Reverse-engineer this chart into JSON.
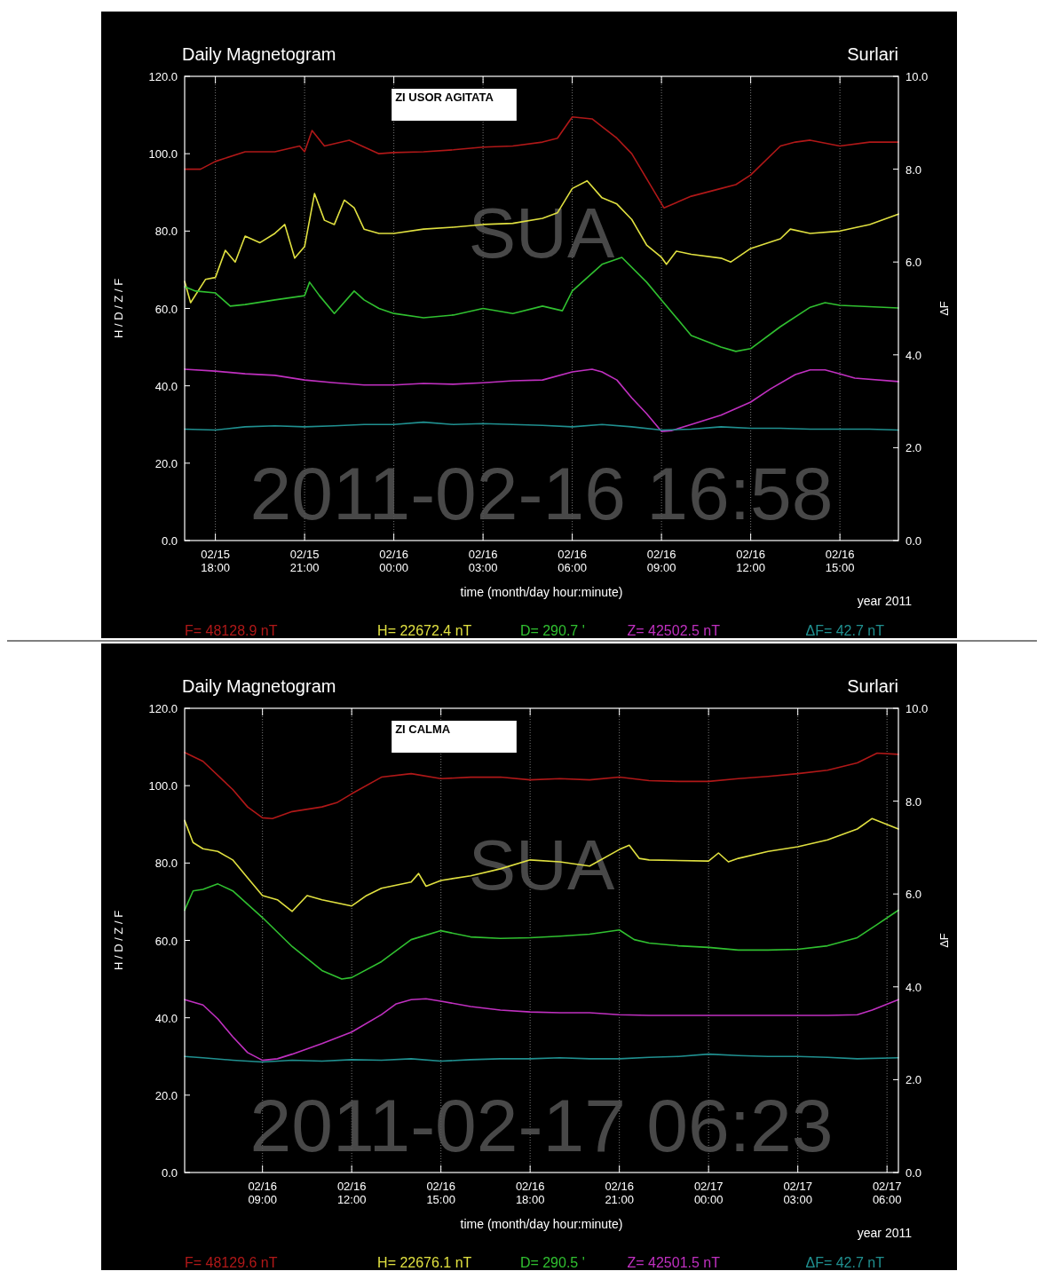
{
  "chart_data": [
    {
      "type": "line",
      "title": "Daily Magnetogram",
      "subtitle": "Surlari",
      "xlabel": "time (month/day hour:minute)",
      "ylabel": "H / D / Z / F",
      "y2label": "ΔF",
      "annotations": [
        "ZI USOR AGITATA",
        "SUA",
        "2011-02-16 16:58",
        "year 2011"
      ],
      "xlim": [
        "2011-02-15T16:58",
        "2011-02-16T16:58"
      ],
      "xticks": [
        {
          "value": "2011-02-15T18:00",
          "label": "02/15 18:00"
        },
        {
          "value": "2011-02-15T21:00",
          "label": "02/15 21:00"
        },
        {
          "value": "2011-02-16T00:00",
          "label": "02/16 00:00"
        },
        {
          "value": "2011-02-16T03:00",
          "label": "02/16 03:00"
        },
        {
          "value": "2011-02-16T06:00",
          "label": "02/16 06:00"
        },
        {
          "value": "2011-02-16T09:00",
          "label": "02/16 09:00"
        },
        {
          "value": "2011-02-16T12:00",
          "label": "02/16 12:00"
        },
        {
          "value": "2011-02-16T15:00",
          "label": "02/16 15:00"
        }
      ],
      "ylim": [
        0,
        120
      ],
      "yticks": [
        {
          "value": 0,
          "label": "0.0"
        },
        {
          "value": 20,
          "label": "20.0"
        },
        {
          "value": 40,
          "label": "40.0"
        },
        {
          "value": 60,
          "label": "60.0"
        },
        {
          "value": 80,
          "label": "80.0"
        },
        {
          "value": 100,
          "label": "100.0"
        },
        {
          "value": 120,
          "label": "120.0"
        }
      ],
      "y2lim": [
        0,
        10
      ],
      "y2ticks": [
        {
          "value": 0,
          "label": "0.0"
        },
        {
          "value": 2,
          "label": "2.0"
        },
        {
          "value": 4,
          "label": "4.0"
        },
        {
          "value": 6,
          "label": "6.0"
        },
        {
          "value": 8,
          "label": "8.0"
        },
        {
          "value": 10,
          "label": "10.0"
        }
      ],
      "grid": "x",
      "legend": "bottom",
      "marker": "none",
      "line_style": "solid",
      "series": [
        {
          "name": "F= 48128.9 nT",
          "color": "#b01818",
          "x": [
            "2011-02-15T16:58",
            "2011-02-15T17:30",
            "2011-02-15T18:00",
            "2011-02-15T19:00",
            "2011-02-15T20:00",
            "2011-02-15T20:50",
            "2011-02-15T21:00",
            "2011-02-15T21:15",
            "2011-02-15T21:40",
            "2011-02-15T22:30",
            "2011-02-15T23:30",
            "2011-02-16T00:00",
            "2011-02-16T01:00",
            "2011-02-16T02:00",
            "2011-02-16T03:00",
            "2011-02-16T04:00",
            "2011-02-16T05:00",
            "2011-02-16T05:30",
            "2011-02-16T06:00",
            "2011-02-16T06:40",
            "2011-02-16T07:00",
            "2011-02-16T07:30",
            "2011-02-16T08:00",
            "2011-02-16T09:05",
            "2011-02-16T10:00",
            "2011-02-16T11:00",
            "2011-02-16T11:30",
            "2011-02-16T12:00",
            "2011-02-16T13:00",
            "2011-02-16T13:30",
            "2011-02-16T14:00",
            "2011-02-16T15:00",
            "2011-02-16T16:00",
            "2011-02-16T16:58"
          ],
          "values": [
            96,
            96,
            98,
            100.5,
            100.5,
            102,
            100.5,
            106,
            102,
            103.5,
            100,
            100.3,
            100.5,
            101,
            101.7,
            102,
            103,
            104,
            109.5,
            109,
            107,
            104,
            100,
            86,
            89,
            91,
            92,
            94.5,
            102,
            103,
            103.5,
            102,
            103,
            103
          ]
        },
        {
          "name": "H= 22672.4 nT",
          "color": "#e0e040",
          "x": [
            "2011-02-15T16:58",
            "2011-02-15T17:10",
            "2011-02-15T17:40",
            "2011-02-15T18:00",
            "2011-02-15T18:20",
            "2011-02-15T18:40",
            "2011-02-15T19:00",
            "2011-02-15T19:30",
            "2011-02-15T20:00",
            "2011-02-15T20:20",
            "2011-02-15T20:40",
            "2011-02-15T21:00",
            "2011-02-15T21:20",
            "2011-02-15T21:40",
            "2011-02-15T22:00",
            "2011-02-15T22:20",
            "2011-02-15T22:40",
            "2011-02-15T23:00",
            "2011-02-15T23:30",
            "2011-02-16T00:00",
            "2011-02-16T01:00",
            "2011-02-16T02:00",
            "2011-02-16T03:00",
            "2011-02-16T04:00",
            "2011-02-16T05:00",
            "2011-02-16T05:30",
            "2011-02-16T06:00",
            "2011-02-16T06:30",
            "2011-02-16T07:00",
            "2011-02-16T07:30",
            "2011-02-16T08:00",
            "2011-02-16T08:30",
            "2011-02-16T09:00",
            "2011-02-16T09:10",
            "2011-02-16T09:30",
            "2011-02-16T10:00",
            "2011-02-16T11:00",
            "2011-02-16T11:20",
            "2011-02-16T12:00",
            "2011-02-16T13:00",
            "2011-02-16T13:20",
            "2011-02-16T14:00",
            "2011-02-16T15:00",
            "2011-02-16T16:00",
            "2011-02-16T16:58"
          ],
          "values": [
            67,
            61.5,
            67.5,
            68,
            75,
            72,
            78.7,
            77,
            79.4,
            81.7,
            73,
            76,
            89.7,
            82.8,
            81.7,
            88,
            86,
            80.5,
            79.4,
            79.4,
            80.5,
            81,
            81.7,
            82,
            83.3,
            84.7,
            91,
            93,
            88.6,
            87,
            83,
            76.4,
            73.2,
            71.4,
            74.8,
            74,
            73,
            72,
            75.5,
            78,
            80.5,
            79.4,
            80,
            81.7,
            84.4
          ]
        },
        {
          "name": "D= 290.7 '",
          "color": "#30c030",
          "x": [
            "2011-02-15T16:58",
            "2011-02-15T17:20",
            "2011-02-15T18:00",
            "2011-02-15T18:30",
            "2011-02-15T19:00",
            "2011-02-15T20:00",
            "2011-02-15T21:00",
            "2011-02-15T21:10",
            "2011-02-15T21:30",
            "2011-02-15T22:00",
            "2011-02-15T22:40",
            "2011-02-15T23:00",
            "2011-02-15T23:30",
            "2011-02-16T00:00",
            "2011-02-16T01:00",
            "2011-02-16T02:00",
            "2011-02-16T03:00",
            "2011-02-16T04:00",
            "2011-02-16T05:00",
            "2011-02-16T05:40",
            "2011-02-16T06:00",
            "2011-02-16T07:00",
            "2011-02-16T07:40",
            "2011-02-16T08:30",
            "2011-02-16T09:00",
            "2011-02-16T10:00",
            "2011-02-16T11:00",
            "2011-02-16T11:30",
            "2011-02-16T12:00",
            "2011-02-16T13:00",
            "2011-02-16T14:00",
            "2011-02-16T14:30",
            "2011-02-16T15:00",
            "2011-02-16T16:58"
          ],
          "values": [
            65.6,
            64.5,
            64,
            60.6,
            61,
            62.2,
            63.3,
            66.8,
            63.3,
            58.7,
            64.5,
            62.2,
            60,
            58.7,
            57.6,
            58.3,
            60,
            58.7,
            60.6,
            59.4,
            64.5,
            71.4,
            73.2,
            66.8,
            62.2,
            53,
            50,
            48.9,
            49.6,
            55.3,
            60.3,
            61.5,
            60.8,
            60.1
          ]
        },
        {
          "name": "Z= 42502.5 nT",
          "color": "#c030c0",
          "x": [
            "2011-02-15T16:58",
            "2011-02-15T18:00",
            "2011-02-15T19:00",
            "2011-02-15T20:00",
            "2011-02-15T21:00",
            "2011-02-15T22:00",
            "2011-02-15T23:00",
            "2011-02-16T00:00",
            "2011-02-16T01:00",
            "2011-02-16T02:00",
            "2011-02-16T03:00",
            "2011-02-16T04:00",
            "2011-02-16T05:00",
            "2011-02-16T06:00",
            "2011-02-16T06:40",
            "2011-02-16T07:00",
            "2011-02-16T07:30",
            "2011-02-16T08:00",
            "2011-02-16T08:30",
            "2011-02-16T09:00",
            "2011-02-16T09:20",
            "2011-02-16T10:00",
            "2011-02-16T11:00",
            "2011-02-16T12:00",
            "2011-02-16T12:40",
            "2011-02-16T13:30",
            "2011-02-16T14:00",
            "2011-02-16T14:30",
            "2011-02-16T15:00",
            "2011-02-16T15:30",
            "2011-02-16T16:58"
          ],
          "values": [
            44.3,
            43.8,
            43.1,
            42.7,
            41.5,
            40.8,
            40.2,
            40.2,
            40.6,
            40.4,
            40.8,
            41.3,
            41.5,
            43.6,
            44.3,
            43.6,
            41.5,
            36.9,
            32.8,
            28.2,
            28.4,
            30,
            32.4,
            35.8,
            39.2,
            42.9,
            44.1,
            44.1,
            43.1,
            42,
            41.1
          ]
        },
        {
          "name": "ΔF= 42.7 nT",
          "color": "#209090",
          "axis": "y2",
          "x": [
            "2011-02-15T16:58",
            "2011-02-15T18:00",
            "2011-02-15T19:00",
            "2011-02-15T20:00",
            "2011-02-15T21:00",
            "2011-02-15T22:00",
            "2011-02-15T23:00",
            "2011-02-16T00:00",
            "2011-02-16T01:00",
            "2011-02-16T02:00",
            "2011-02-16T03:00",
            "2011-02-16T04:00",
            "2011-02-16T05:00",
            "2011-02-16T06:00",
            "2011-02-16T07:00",
            "2011-02-16T08:00",
            "2011-02-16T09:00",
            "2011-02-16T10:00",
            "2011-02-16T11:00",
            "2011-02-16T12:00",
            "2011-02-16T13:00",
            "2011-02-16T14:00",
            "2011-02-16T15:00",
            "2011-02-16T16:00",
            "2011-02-16T16:58"
          ],
          "values": [
            2.4,
            2.38,
            2.45,
            2.47,
            2.45,
            2.47,
            2.5,
            2.5,
            2.55,
            2.5,
            2.52,
            2.5,
            2.48,
            2.45,
            2.5,
            2.45,
            2.38,
            2.4,
            2.45,
            2.42,
            2.42,
            2.4,
            2.4,
            2.4,
            2.38
          ]
        }
      ]
    },
    {
      "type": "line",
      "title": "Daily Magnetogram",
      "subtitle": "Surlari",
      "xlabel": "time (month/day hour:minute)",
      "ylabel": "H / D / Z / F",
      "y2label": "ΔF",
      "annotations": [
        "ZI CALMA",
        "SUA",
        "2011-02-17 06:23",
        "year 2011"
      ],
      "xlim": [
        "2011-02-16T06:23",
        "2011-02-17T06:23"
      ],
      "xticks": [
        {
          "value": "2011-02-16T09:00",
          "label": "02/16 09:00"
        },
        {
          "value": "2011-02-16T12:00",
          "label": "02/16 12:00"
        },
        {
          "value": "2011-02-16T15:00",
          "label": "02/16 15:00"
        },
        {
          "value": "2011-02-16T18:00",
          "label": "02/16 18:00"
        },
        {
          "value": "2011-02-16T21:00",
          "label": "02/16 21:00"
        },
        {
          "value": "2011-02-17T00:00",
          "label": "02/17 00:00"
        },
        {
          "value": "2011-02-17T03:00",
          "label": "02/17 03:00"
        },
        {
          "value": "2011-02-17T06:00",
          "label": "02/17 06:00"
        }
      ],
      "ylim": [
        0,
        120
      ],
      "yticks": [
        {
          "value": 0,
          "label": "0.0"
        },
        {
          "value": 20,
          "label": "20.0"
        },
        {
          "value": 40,
          "label": "40.0"
        },
        {
          "value": 60,
          "label": "60.0"
        },
        {
          "value": 80,
          "label": "80.0"
        },
        {
          "value": 100,
          "label": "100.0"
        },
        {
          "value": 120,
          "label": "120.0"
        }
      ],
      "y2lim": [
        0,
        10
      ],
      "y2ticks": [
        {
          "value": 0,
          "label": "0.0"
        },
        {
          "value": 2,
          "label": "2.0"
        },
        {
          "value": 4,
          "label": "4.0"
        },
        {
          "value": 6,
          "label": "6.0"
        },
        {
          "value": 8,
          "label": "8.0"
        },
        {
          "value": 10,
          "label": "10.0"
        }
      ],
      "grid": "x",
      "legend": "bottom",
      "marker": "none",
      "line_style": "solid",
      "series": [
        {
          "name": "F= 48129.6 nT",
          "color": "#b01818",
          "x": [
            "2011-02-16T06:23",
            "2011-02-16T07:00",
            "2011-02-16T08:00",
            "2011-02-16T08:30",
            "2011-02-16T09:00",
            "2011-02-16T09:20",
            "2011-02-16T10:00",
            "2011-02-16T11:00",
            "2011-02-16T11:30",
            "2011-02-16T12:00",
            "2011-02-16T13:00",
            "2011-02-16T14:00",
            "2011-02-16T15:00",
            "2011-02-16T16:00",
            "2011-02-16T17:00",
            "2011-02-16T18:00",
            "2011-02-16T19:00",
            "2011-02-16T20:00",
            "2011-02-16T21:00",
            "2011-02-16T22:00",
            "2011-02-16T23:00",
            "2011-02-17T00:00",
            "2011-02-17T01:00",
            "2011-02-17T02:00",
            "2011-02-17T03:00",
            "2011-02-17T04:00",
            "2011-02-17T05:00",
            "2011-02-17T05:40",
            "2011-02-17T06:23"
          ],
          "values": [
            108.6,
            106.3,
            99,
            94.5,
            91.7,
            91.5,
            93.3,
            94.5,
            95.6,
            97.9,
            102.2,
            103.1,
            101.8,
            102.2,
            102.2,
            101.5,
            101.8,
            101.5,
            102.2,
            101.3,
            101.1,
            101.1,
            101.8,
            102.4,
            103.1,
            104,
            105.9,
            108.4,
            108.1
          ]
        },
        {
          "name": "H= 22676.1 nT",
          "color": "#e0e040",
          "x": [
            "2011-02-16T06:23",
            "2011-02-16T06:40",
            "2011-02-16T07:00",
            "2011-02-16T07:30",
            "2011-02-16T08:00",
            "2011-02-16T08:30",
            "2011-02-16T09:00",
            "2011-02-16T09:30",
            "2011-02-16T10:00",
            "2011-02-16T10:30",
            "2011-02-16T11:00",
            "2011-02-16T12:00",
            "2011-02-16T12:30",
            "2011-02-16T13:00",
            "2011-02-16T14:00",
            "2011-02-16T14:15",
            "2011-02-16T14:30",
            "2011-02-16T15:00",
            "2011-02-16T16:00",
            "2011-02-16T17:00",
            "2011-02-16T18:00",
            "2011-02-16T19:00",
            "2011-02-16T20:00",
            "2011-02-16T21:00",
            "2011-02-16T21:20",
            "2011-02-16T21:40",
            "2011-02-16T22:00",
            "2011-02-17T00:00",
            "2011-02-17T00:20",
            "2011-02-17T00:40",
            "2011-02-17T01:00",
            "2011-02-17T02:00",
            "2011-02-17T03:00",
            "2011-02-17T04:00",
            "2011-02-17T05:00",
            "2011-02-17T05:30",
            "2011-02-17T06:23"
          ],
          "values": [
            91,
            85.3,
            83.7,
            83,
            80.8,
            76.2,
            71.6,
            70.5,
            67.5,
            71.6,
            70.5,
            68.9,
            71.6,
            73.5,
            75.1,
            77.3,
            74,
            75.5,
            76.7,
            78.5,
            80.8,
            80.3,
            79.2,
            83.5,
            84.6,
            81.2,
            80.8,
            80.5,
            82.6,
            80.3,
            81.2,
            83,
            84.2,
            86,
            88.8,
            91.5,
            88.8
          ]
        },
        {
          "name": "D= 290.5 '",
          "color": "#30c030",
          "x": [
            "2011-02-16T06:23",
            "2011-02-16T06:40",
            "2011-02-16T07:00",
            "2011-02-16T07:30",
            "2011-02-16T08:00",
            "2011-02-16T09:00",
            "2011-02-16T10:00",
            "2011-02-16T11:00",
            "2011-02-16T11:40",
            "2011-02-16T12:00",
            "2011-02-16T13:00",
            "2011-02-16T14:00",
            "2011-02-16T15:00",
            "2011-02-16T16:00",
            "2011-02-16T17:00",
            "2011-02-16T18:00",
            "2011-02-16T19:00",
            "2011-02-16T20:00",
            "2011-02-16T21:00",
            "2011-02-16T21:30",
            "2011-02-16T22:00",
            "2011-02-16T23:00",
            "2011-02-17T00:00",
            "2011-02-17T01:00",
            "2011-02-17T02:00",
            "2011-02-17T03:00",
            "2011-02-17T04:00",
            "2011-02-17T05:00",
            "2011-02-17T05:40",
            "2011-02-17T06:23"
          ],
          "values": [
            67.8,
            72.8,
            73.2,
            74.6,
            72.8,
            65.9,
            58.4,
            52.2,
            50,
            50.4,
            54.5,
            60.2,
            62.5,
            60.9,
            60.5,
            60.7,
            61.1,
            61.6,
            62.7,
            60.2,
            59.3,
            58.6,
            58.2,
            57.5,
            57.5,
            57.7,
            58.6,
            60.7,
            64.1,
            67.8
          ]
        },
        {
          "name": "Z= 42501.5 nT",
          "color": "#c030c0",
          "x": [
            "2011-02-16T06:23",
            "2011-02-16T07:00",
            "2011-02-16T07:30",
            "2011-02-16T08:00",
            "2011-02-16T08:30",
            "2011-02-16T09:00",
            "2011-02-16T09:30",
            "2011-02-16T10:00",
            "2011-02-16T11:00",
            "2011-02-16T12:00",
            "2011-02-16T13:00",
            "2011-02-16T13:30",
            "2011-02-16T14:00",
            "2011-02-16T14:30",
            "2011-02-16T15:00",
            "2011-02-16T16:00",
            "2011-02-16T17:00",
            "2011-02-16T18:00",
            "2011-02-16T19:00",
            "2011-02-16T20:00",
            "2011-02-16T21:00",
            "2011-02-16T22:00",
            "2011-02-17T00:00",
            "2011-02-17T02:00",
            "2011-02-17T04:00",
            "2011-02-17T05:00",
            "2011-02-17T05:30",
            "2011-02-17T06:23"
          ],
          "values": [
            44.7,
            43.3,
            39.7,
            35.1,
            31,
            29,
            29.4,
            30.6,
            33.3,
            36.3,
            40.8,
            43.6,
            44.7,
            44.9,
            44.3,
            42.9,
            42,
            41.5,
            41.3,
            41.3,
            40.8,
            40.6,
            40.6,
            40.6,
            40.6,
            40.8,
            42,
            44.7
          ]
        },
        {
          "name": "ΔF= 42.7 nT",
          "color": "#209090",
          "axis": "y2",
          "x": [
            "2011-02-16T06:23",
            "2011-02-16T07:00",
            "2011-02-16T08:00",
            "2011-02-16T09:00",
            "2011-02-16T10:00",
            "2011-02-16T11:00",
            "2011-02-16T12:00",
            "2011-02-16T13:00",
            "2011-02-16T14:00",
            "2011-02-16T15:00",
            "2011-02-16T16:00",
            "2011-02-16T17:00",
            "2011-02-16T18:00",
            "2011-02-16T19:00",
            "2011-02-16T20:00",
            "2011-02-16T21:00",
            "2011-02-16T22:00",
            "2011-02-16T23:00",
            "2011-02-17T00:00",
            "2011-02-17T01:00",
            "2011-02-17T02:00",
            "2011-02-17T03:00",
            "2011-02-17T04:00",
            "2011-02-17T05:00",
            "2011-02-17T06:23"
          ],
          "values": [
            2.5,
            2.47,
            2.42,
            2.38,
            2.42,
            2.4,
            2.43,
            2.42,
            2.45,
            2.4,
            2.43,
            2.45,
            2.45,
            2.47,
            2.45,
            2.45,
            2.48,
            2.5,
            2.55,
            2.52,
            2.5,
            2.5,
            2.48,
            2.45,
            2.47
          ]
        }
      ]
    }
  ]
}
